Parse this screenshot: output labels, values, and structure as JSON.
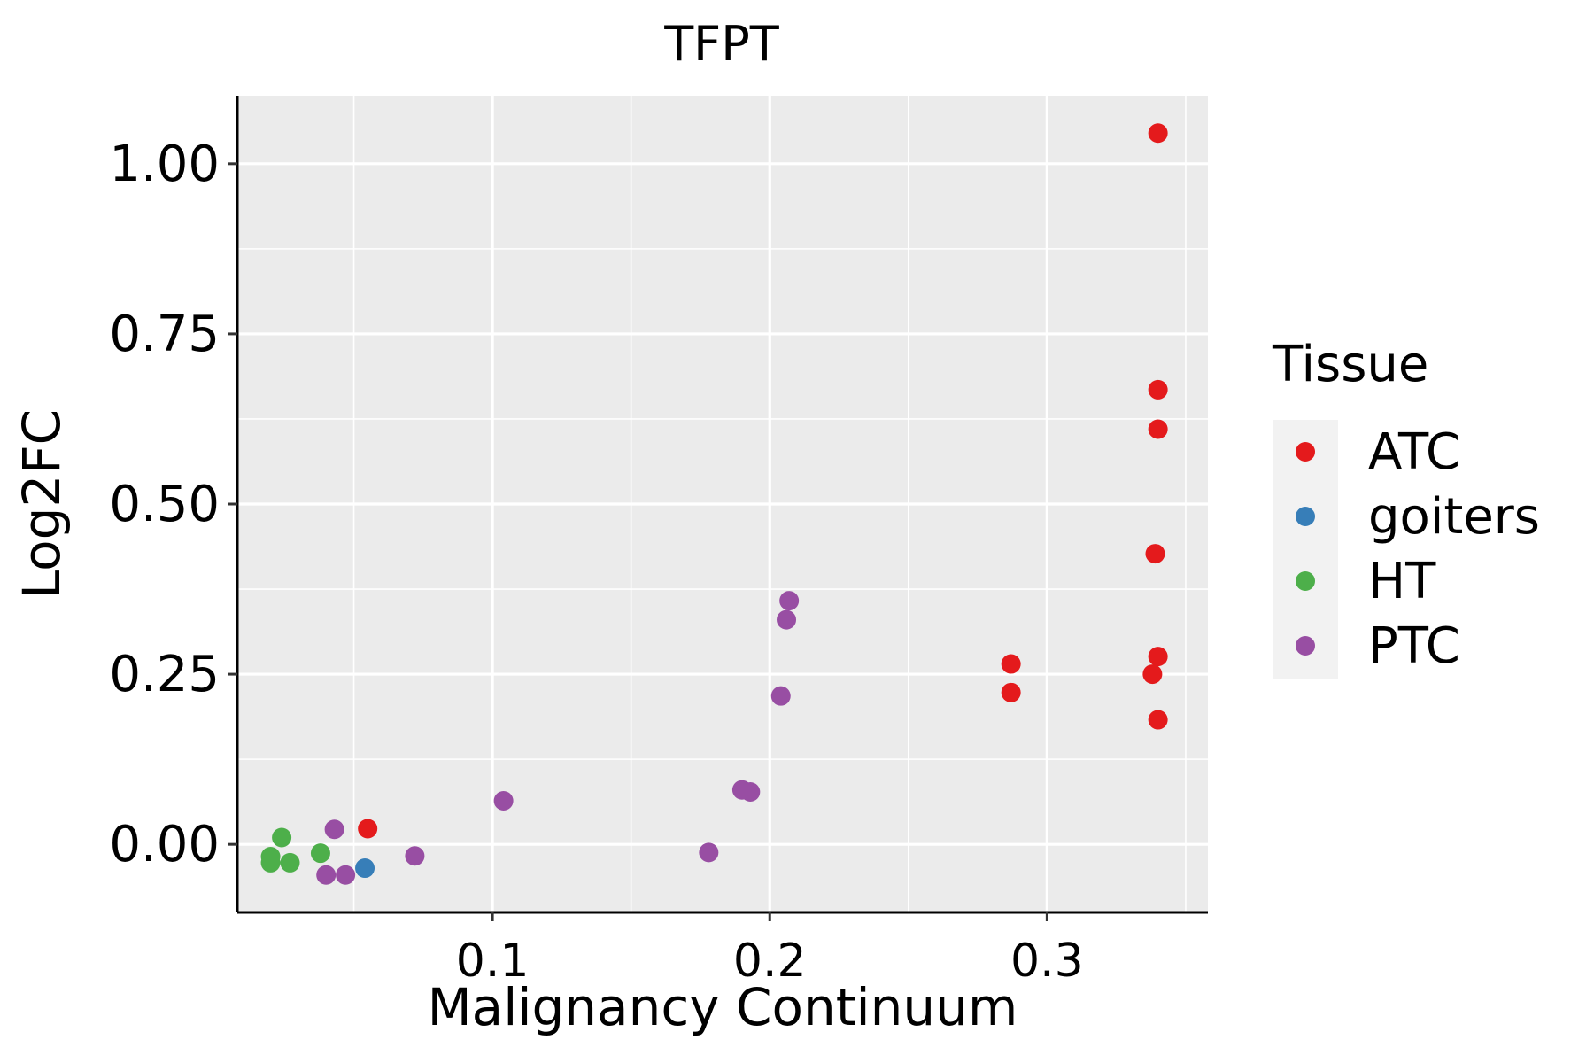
{
  "chart_data": {
    "type": "scatter",
    "title": "TFPT",
    "xlabel": "Malignancy Continuum",
    "ylabel": "Log2FC",
    "xlim": [
      0.008,
      0.358
    ],
    "ylim": [
      -0.1,
      1.1
    ],
    "x_ticks": [
      {
        "value": 0.1,
        "label": "0.1"
      },
      {
        "value": 0.2,
        "label": "0.2"
      },
      {
        "value": 0.3,
        "label": "0.3"
      }
    ],
    "x_minor": [
      0.05,
      0.15,
      0.25,
      0.35
    ],
    "y_ticks": [
      {
        "value": 0.0,
        "label": "0.00"
      },
      {
        "value": 0.25,
        "label": "0.25"
      },
      {
        "value": 0.5,
        "label": "0.50"
      },
      {
        "value": 0.75,
        "label": "0.75"
      },
      {
        "value": 1.0,
        "label": "1.00"
      }
    ],
    "y_minor": [
      0.125,
      0.375,
      0.625,
      0.875
    ],
    "grid": true,
    "legend": {
      "title": "Tissue",
      "position": "right"
    },
    "series": [
      {
        "name": "ATC",
        "color": "#E41A1C",
        "points": [
          {
            "x": 0.34,
            "y": 1.045
          },
          {
            "x": 0.34,
            "y": 0.668
          },
          {
            "x": 0.34,
            "y": 0.61
          },
          {
            "x": 0.339,
            "y": 0.427
          },
          {
            "x": 0.34,
            "y": 0.276
          },
          {
            "x": 0.338,
            "y": 0.25
          },
          {
            "x": 0.34,
            "y": 0.183
          },
          {
            "x": 0.287,
            "y": 0.265
          },
          {
            "x": 0.287,
            "y": 0.223
          },
          {
            "x": 0.055,
            "y": 0.023
          }
        ]
      },
      {
        "name": "goiters",
        "color": "#377EB8",
        "points": [
          {
            "x": 0.054,
            "y": -0.035
          }
        ]
      },
      {
        "name": "HT",
        "color": "#4DAF4A",
        "points": [
          {
            "x": 0.024,
            "y": 0.01
          },
          {
            "x": 0.02,
            "y": -0.018
          },
          {
            "x": 0.02,
            "y": -0.027
          },
          {
            "x": 0.027,
            "y": -0.027
          },
          {
            "x": 0.038,
            "y": -0.013
          }
        ]
      },
      {
        "name": "PTC",
        "color": "#984EA3",
        "points": [
          {
            "x": 0.043,
            "y": 0.022
          },
          {
            "x": 0.04,
            "y": -0.045
          },
          {
            "x": 0.047,
            "y": -0.045
          },
          {
            "x": 0.072,
            "y": -0.017
          },
          {
            "x": 0.104,
            "y": 0.064
          },
          {
            "x": 0.178,
            "y": -0.012
          },
          {
            "x": 0.19,
            "y": 0.08
          },
          {
            "x": 0.193,
            "y": 0.077
          },
          {
            "x": 0.204,
            "y": 0.218
          },
          {
            "x": 0.206,
            "y": 0.33
          },
          {
            "x": 0.207,
            "y": 0.358
          }
        ]
      }
    ]
  }
}
